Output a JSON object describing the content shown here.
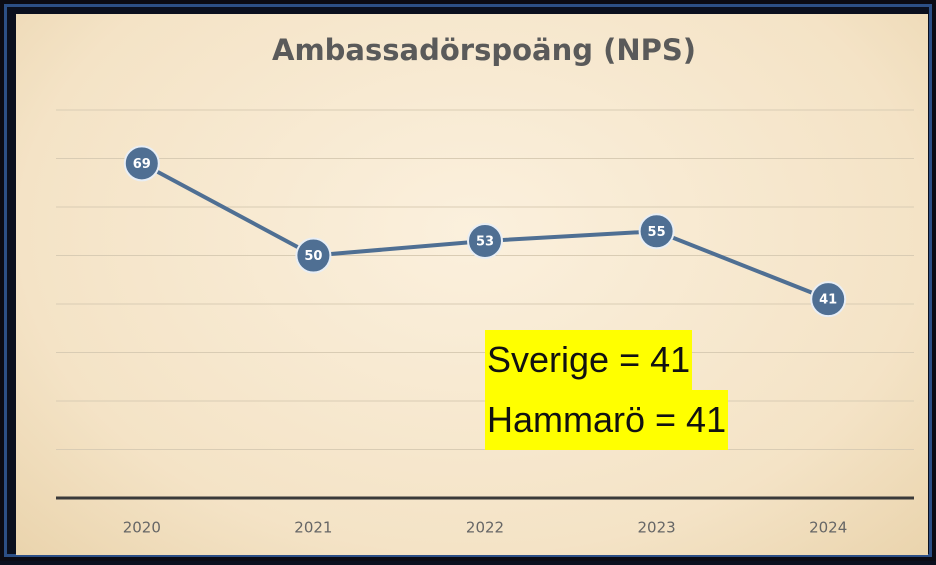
{
  "chart_data": {
    "type": "line",
    "title": "Ambassadörspoäng (NPS)",
    "categories": [
      "2020",
      "2021",
      "2022",
      "2023",
      "2024"
    ],
    "series": [
      {
        "name": "NPS",
        "color": "#4f6f93",
        "values": [
          69,
          50,
          53,
          55,
          41
        ]
      }
    ],
    "ylim": [
      0,
      80
    ],
    "yticks": [
      0,
      10,
      20,
      30,
      40,
      50,
      60,
      70,
      80
    ],
    "grid": true,
    "annotations": [
      "Sverige = 41",
      "Hammarö = 41"
    ]
  }
}
